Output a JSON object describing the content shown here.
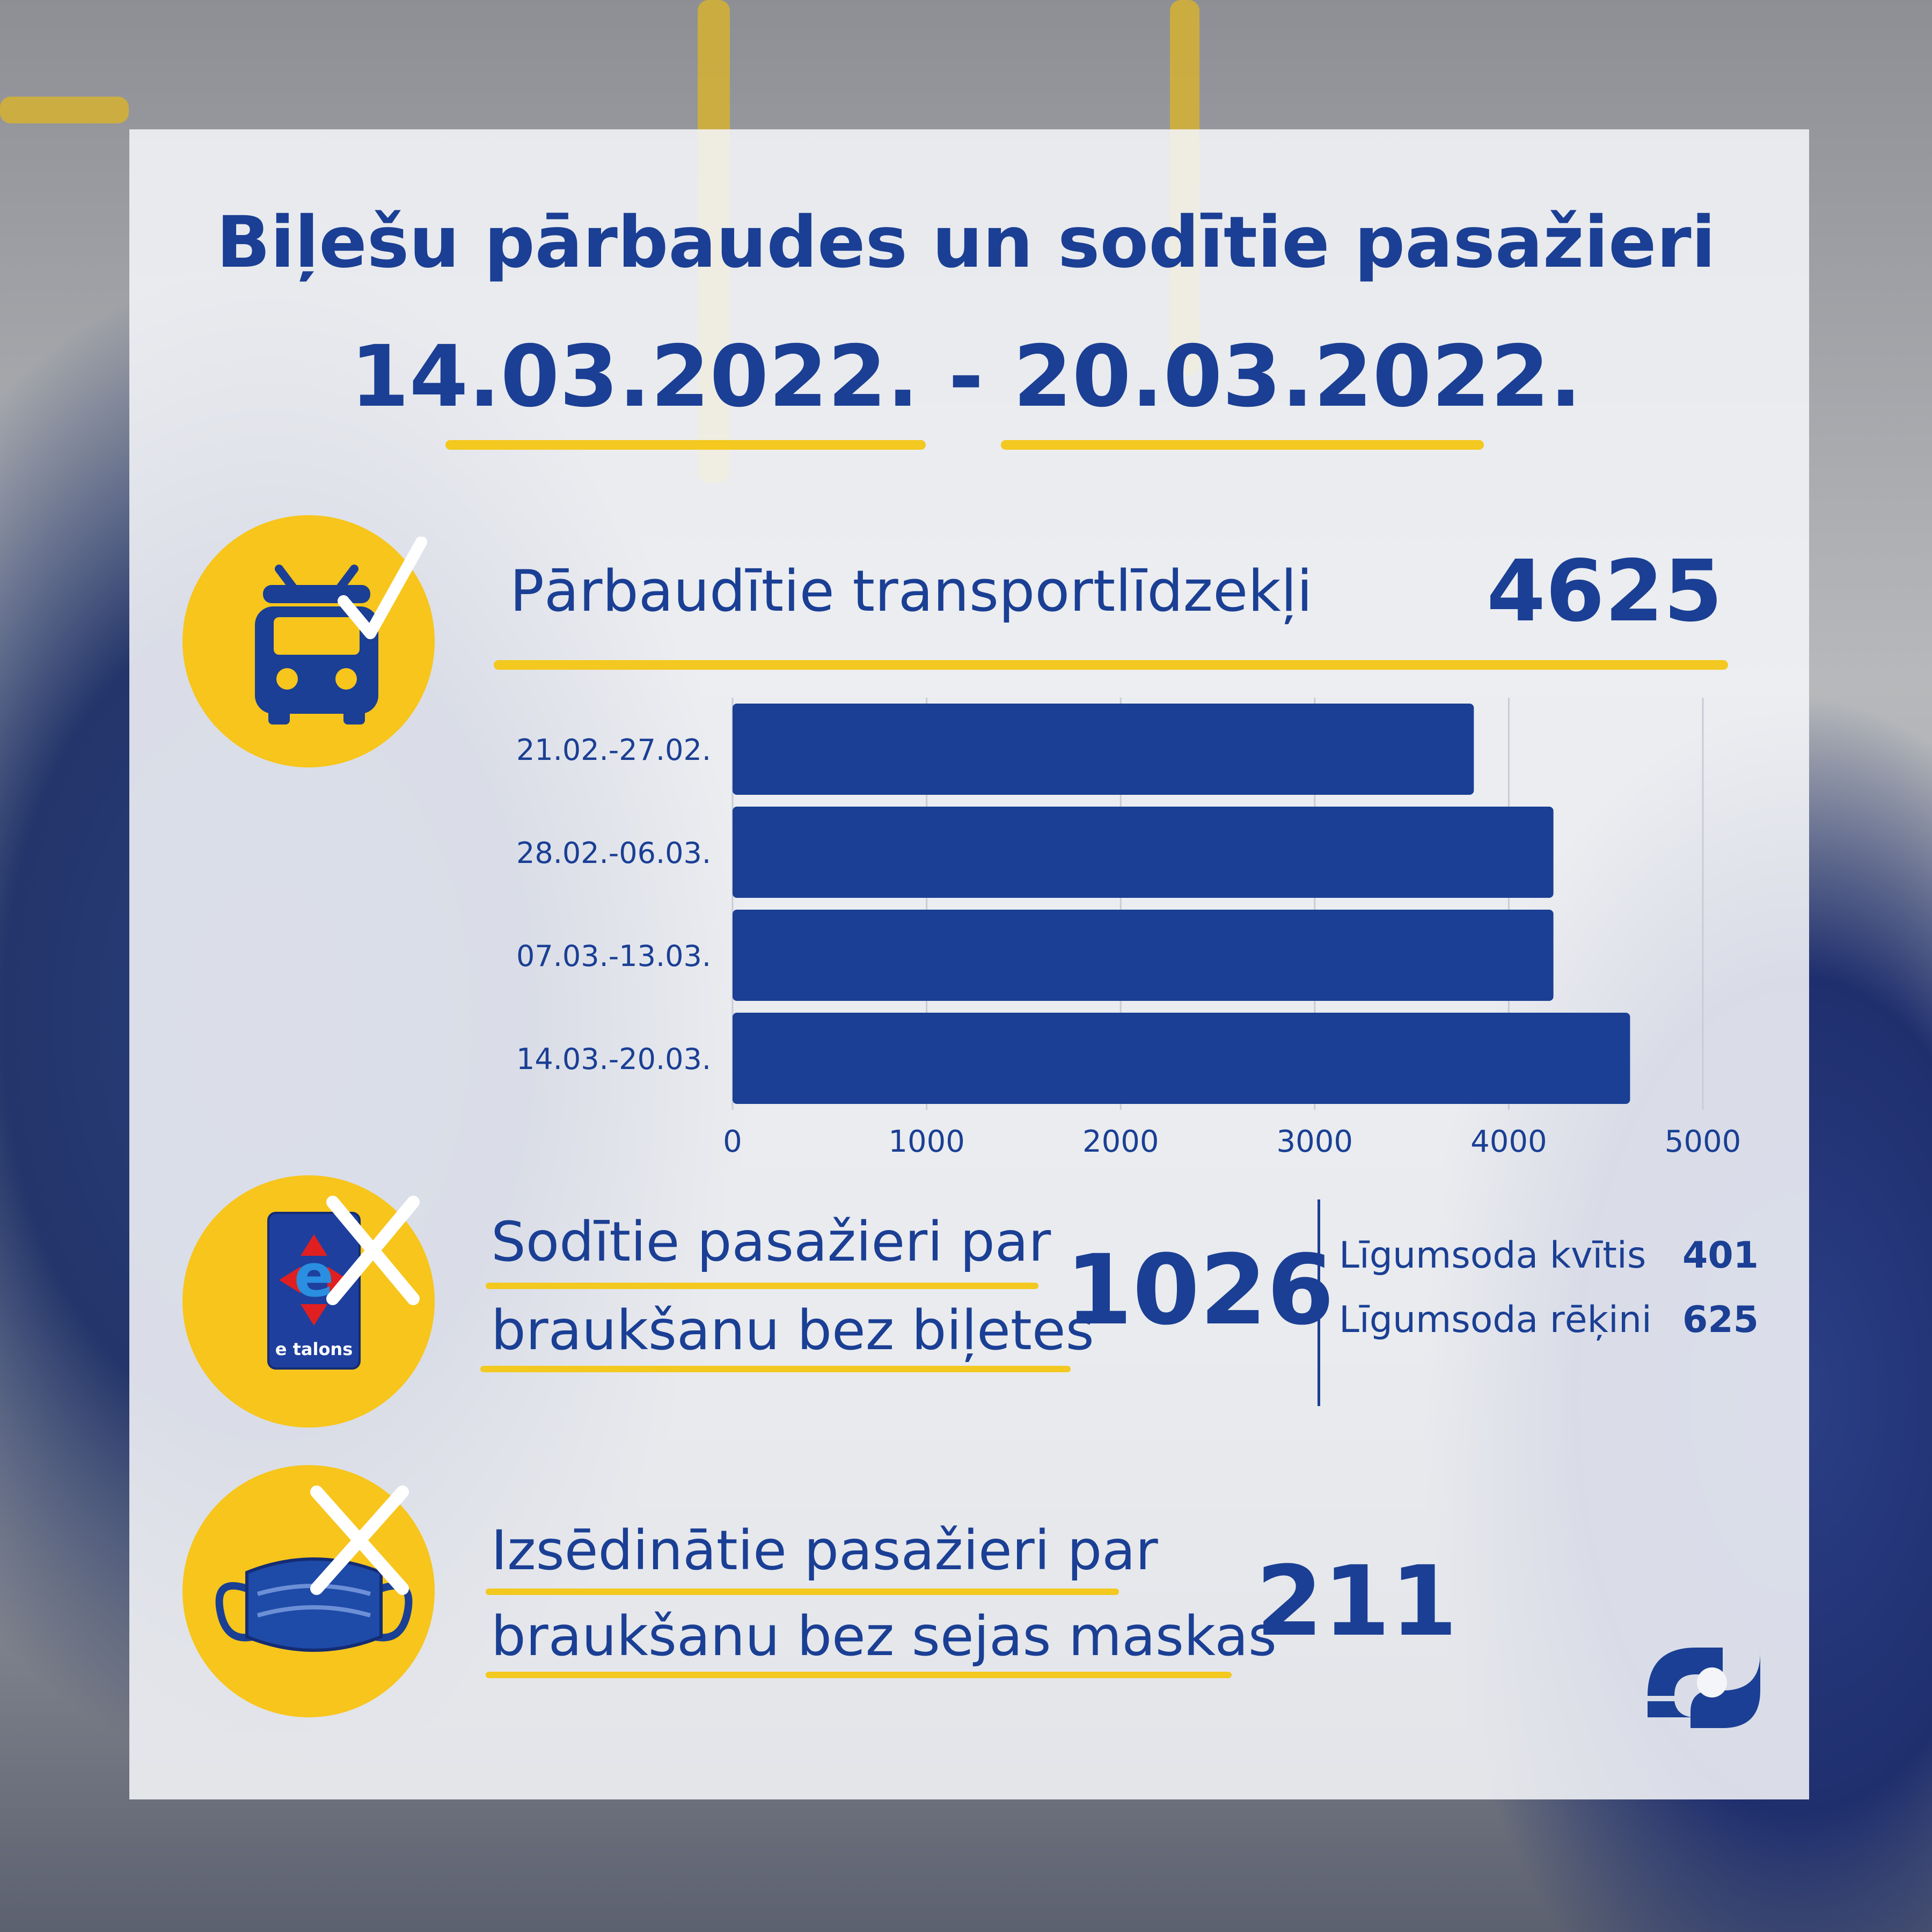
{
  "title": {
    "line1": "Biļešu pārbaudes un sodītie pasažieri",
    "line2": "14.03.2022. - 20.03.2022."
  },
  "icons": {
    "vehicle": "bus-check-icon",
    "ticket": "etalons-card-cross-icon",
    "mask": "face-mask-cross-icon",
    "logo": "rs-logo"
  },
  "card_text": "e talons",
  "colors": {
    "accent": "#1a3f94",
    "bar": "#1a3f94",
    "highlight": "#f7c51b"
  },
  "vehicles": {
    "label": "Pārbaudītie transportlīdzekļi",
    "value": "4625"
  },
  "chart_data": {
    "type": "bar",
    "orientation": "horizontal",
    "categories": [
      "21.02.-27.02.",
      "28.02.-06.03.",
      "07.03.-13.03.",
      "14.03.-20.03."
    ],
    "values": [
      3820,
      4230,
      4230,
      4625
    ],
    "xlim": [
      0,
      5000
    ],
    "xticks": [
      "0",
      "1000",
      "2000",
      "3000",
      "4000",
      "5000"
    ],
    "grid": true
  },
  "fined": {
    "label_line1": "Sodītie pasažieri par",
    "label_line2": "braukšanu bez biļetes",
    "value": "1026",
    "breakdown": [
      {
        "label": "Līgumsoda kvītis",
        "value": "401"
      },
      {
        "label": "Līgumsoda rēķini",
        "value": "625"
      }
    ]
  },
  "mask": {
    "label_line1": "Izsēdinātie pasažieri par",
    "label_line2": "braukšanu bez sejas maskas",
    "value": "211"
  }
}
